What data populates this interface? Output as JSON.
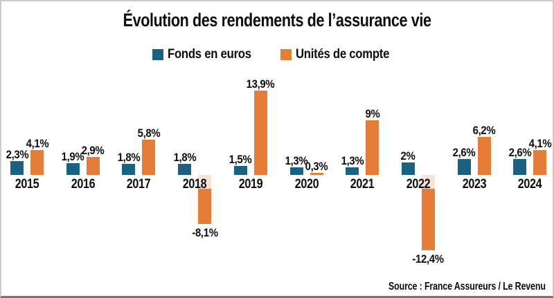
{
  "title": "Évolution des rendements de l’assurance vie",
  "legend": {
    "items": [
      {
        "label": "Fonds en euros",
        "color": "#1a6282"
      },
      {
        "label": "Unités de compte",
        "color": "#e57d38"
      }
    ]
  },
  "source": "Source : France Assureurs / Le Revenu",
  "colors": {
    "fonds_en_euros": "#1a6282",
    "unites_de_compte": "#e57d38",
    "negative_bar_pale_band": "#fae3d4",
    "text": "#0d0d0d",
    "frame_border": "#cccccc",
    "frame_border_bottom": "#777777"
  },
  "chart_data": {
    "type": "bar",
    "title": "Évolution des rendements de l’assurance vie",
    "categories": [
      "2015",
      "2016",
      "2017",
      "2018",
      "2019",
      "2020",
      "2021",
      "2022",
      "2023",
      "2024"
    ],
    "series": [
      {
        "name": "Fonds en euros",
        "color": "#1a6282",
        "values": [
          2.3,
          1.9,
          1.8,
          1.8,
          1.5,
          1.3,
          1.3,
          2,
          2.6,
          2.6
        ],
        "labels": [
          "2,3%",
          "1,9%",
          "1,8%",
          "1,8%",
          "1,5%",
          "1,3%",
          "1,3%",
          "2%",
          "2,6%",
          "2,6%"
        ]
      },
      {
        "name": "Unités de compte",
        "color": "#e57d38",
        "values": [
          4.1,
          2.9,
          5.8,
          -8.1,
          13.9,
          0.3,
          9,
          -12.4,
          6.2,
          4.1
        ],
        "labels": [
          "4,1%",
          "2,9%",
          "5,8%",
          "-8,1%",
          "13,9%",
          "0,3%",
          "9%",
          "-12,4%",
          "6,2%",
          "4,1%"
        ]
      }
    ],
    "unit": "%",
    "xlabel": "",
    "ylabel": "",
    "ylim": [
      -12.4,
      13.9
    ],
    "grid": false,
    "axis_lines": false,
    "legend_position": "top",
    "value_labels": "all",
    "negative_values_note": "bars for -8,1% (2018) and -12,4% (2022) extend below the year-label band; the band segment is drawn in pale orange"
  }
}
